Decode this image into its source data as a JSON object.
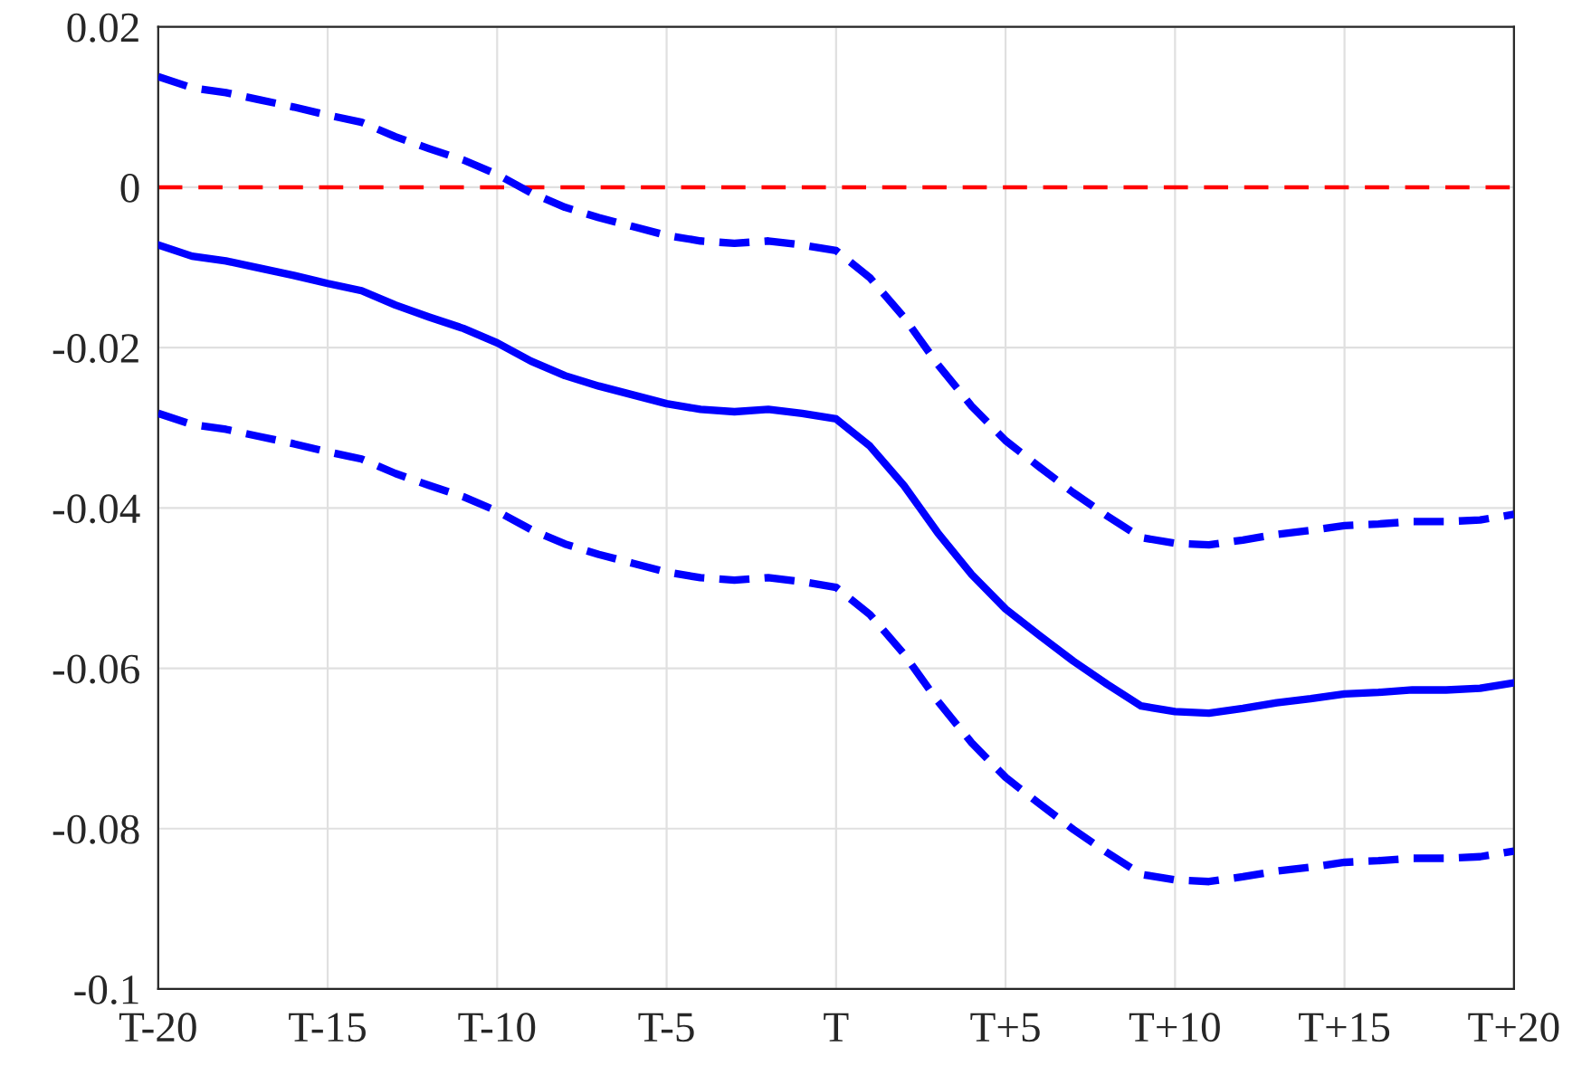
{
  "chart_data": {
    "type": "line",
    "categories": [
      "T-20",
      null,
      null,
      null,
      null,
      "T-15",
      null,
      null,
      null,
      null,
      "T-10",
      null,
      null,
      null,
      null,
      "T-5",
      null,
      null,
      null,
      null,
      "T",
      null,
      null,
      null,
      null,
      "T+5",
      null,
      null,
      null,
      null,
      "T+10",
      null,
      null,
      null,
      null,
      "T+15",
      null,
      null,
      null,
      null,
      "T+20"
    ],
    "series": [
      {
        "color": "#0000ff",
        "line_style": "dashed",
        "values": [
          0.0138,
          0.0124,
          0.0118,
          0.0109,
          0.01,
          0.009,
          0.0081,
          0.0063,
          0.0048,
          0.0034,
          0.0016,
          -0.0007,
          -0.0025,
          -0.0038,
          -0.0049,
          -0.006,
          -0.0067,
          -0.007,
          -0.0067,
          -0.0072,
          -0.0079,
          -0.0113,
          -0.0162,
          -0.0221,
          -0.0273,
          -0.0316,
          -0.0349,
          -0.0381,
          -0.041,
          -0.0437,
          -0.0444,
          -0.0446,
          -0.044,
          -0.0433,
          -0.0428,
          -0.0422,
          -0.042,
          -0.0417,
          -0.0417,
          -0.0415,
          -0.0408
        ]
      },
      {
        "color": "#0000ff",
        "line_style": "solid",
        "values": [
          -0.0072,
          -0.0086,
          -0.0092,
          -0.0101,
          -0.011,
          -0.012,
          -0.0129,
          -0.0147,
          -0.0162,
          -0.0176,
          -0.0194,
          -0.0217,
          -0.0235,
          -0.0248,
          -0.0259,
          -0.027,
          -0.0277,
          -0.028,
          -0.0277,
          -0.0282,
          -0.0289,
          -0.0323,
          -0.0372,
          -0.0431,
          -0.0483,
          -0.0526,
          -0.0559,
          -0.0591,
          -0.062,
          -0.0647,
          -0.0654,
          -0.0656,
          -0.065,
          -0.0643,
          -0.0638,
          -0.0632,
          -0.063,
          -0.0627,
          -0.0627,
          -0.0625,
          -0.0618
        ]
      },
      {
        "color": "#0000ff",
        "line_style": "dashed",
        "values": [
          -0.0282,
          -0.0296,
          -0.0302,
          -0.0311,
          -0.032,
          -0.033,
          -0.0339,
          -0.0357,
          -0.0372,
          -0.0386,
          -0.0404,
          -0.0427,
          -0.0445,
          -0.0458,
          -0.0469,
          -0.048,
          -0.0487,
          -0.049,
          -0.0487,
          -0.0492,
          -0.0499,
          -0.0533,
          -0.0582,
          -0.0641,
          -0.0693,
          -0.0736,
          -0.0769,
          -0.0801,
          -0.083,
          -0.0857,
          -0.0864,
          -0.0866,
          -0.086,
          -0.0853,
          -0.0848,
          -0.0842,
          -0.084,
          -0.0837,
          -0.0837,
          -0.0835,
          -0.0828
        ]
      }
    ],
    "ref_lines": [
      {
        "axis": "y",
        "value": 0,
        "color": "#ff0000",
        "line_style": "dashed"
      }
    ],
    "ylim": [
      -0.1,
      0.02
    ],
    "yticks": [
      {
        "value": -0.1,
        "label": "-0.1"
      },
      {
        "value": -0.08,
        "label": "-0.08"
      },
      {
        "value": -0.06,
        "label": "-0.06"
      },
      {
        "value": -0.04,
        "label": "-0.04"
      },
      {
        "value": -0.02,
        "label": "-0.02"
      },
      0,
      {
        "value": 0.02,
        "label": "0.02"
      }
    ],
    "grid": true
  }
}
